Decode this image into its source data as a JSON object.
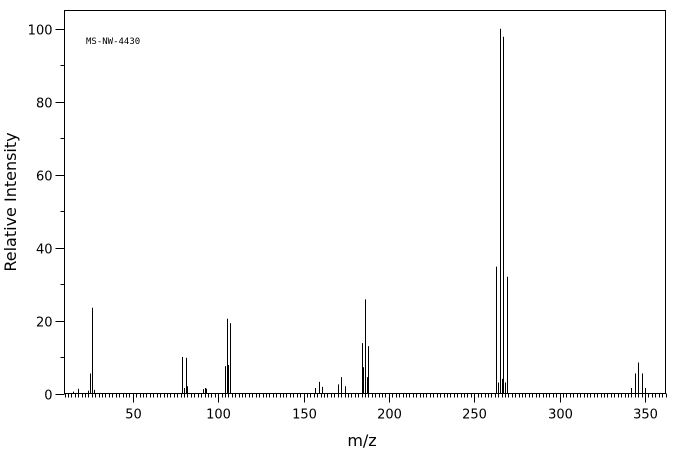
{
  "chart_data": {
    "type": "bar",
    "annotation": "MS-NW-4430",
    "xlabel": "m/z",
    "ylabel": "Relative Intensity",
    "xlim": [
      10,
      362
    ],
    "ylim": [
      0,
      105
    ],
    "x_ticks": [
      50,
      100,
      150,
      200,
      250,
      300,
      350
    ],
    "y_ticks": [
      0,
      20,
      40,
      60,
      80,
      100
    ],
    "x_minor_step": 2,
    "y_minor_step": 10,
    "grid": false,
    "peaks": [
      {
        "mz": 15,
        "intensity": 0.5
      },
      {
        "mz": 18,
        "intensity": 1.3
      },
      {
        "mz": 24,
        "intensity": 0.8
      },
      {
        "mz": 25,
        "intensity": 5.5
      },
      {
        "mz": 26,
        "intensity": 23.5
      },
      {
        "mz": 27,
        "intensity": 1.0
      },
      {
        "mz": 79,
        "intensity": 10.0
      },
      {
        "mz": 80,
        "intensity": 1.5
      },
      {
        "mz": 81,
        "intensity": 9.8
      },
      {
        "mz": 82,
        "intensity": 2.0
      },
      {
        "mz": 91,
        "intensity": 1.2
      },
      {
        "mz": 92,
        "intensity": 1.5
      },
      {
        "mz": 93,
        "intensity": 1.3
      },
      {
        "mz": 104,
        "intensity": 7.5
      },
      {
        "mz": 105,
        "intensity": 20.5
      },
      {
        "mz": 106,
        "intensity": 7.8
      },
      {
        "mz": 107,
        "intensity": 19.3
      },
      {
        "mz": 157,
        "intensity": 1.5
      },
      {
        "mz": 159,
        "intensity": 3.2
      },
      {
        "mz": 161,
        "intensity": 1.8
      },
      {
        "mz": 170,
        "intensity": 2.5
      },
      {
        "mz": 172,
        "intensity": 4.5
      },
      {
        "mz": 174,
        "intensity": 2.0
      },
      {
        "mz": 184,
        "intensity": 13.8
      },
      {
        "mz": 185,
        "intensity": 7.2
      },
      {
        "mz": 186,
        "intensity": 25.8
      },
      {
        "mz": 187,
        "intensity": 4.5
      },
      {
        "mz": 188,
        "intensity": 13.0
      },
      {
        "mz": 263,
        "intensity": 34.8
      },
      {
        "mz": 264,
        "intensity": 3.0
      },
      {
        "mz": 265,
        "intensity": 100
      },
      {
        "mz": 266,
        "intensity": 4.0
      },
      {
        "mz": 267,
        "intensity": 97.8
      },
      {
        "mz": 268,
        "intensity": 3.0
      },
      {
        "mz": 269,
        "intensity": 32.0
      },
      {
        "mz": 342,
        "intensity": 1.5
      },
      {
        "mz": 344,
        "intensity": 5.5
      },
      {
        "mz": 346,
        "intensity": 8.5
      },
      {
        "mz": 348,
        "intensity": 5.5
      },
      {
        "mz": 350,
        "intensity": 1.5
      }
    ]
  }
}
